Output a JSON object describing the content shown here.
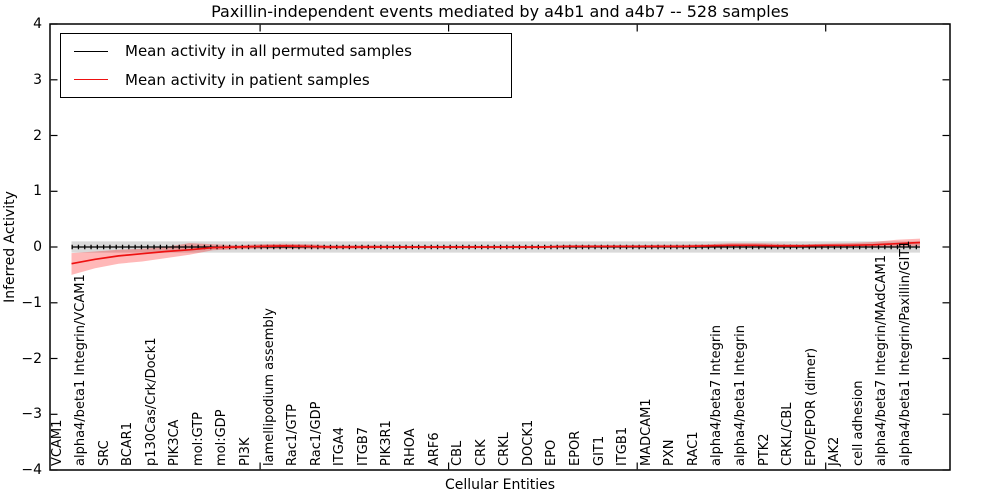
{
  "chart_data": {
    "type": "line",
    "title": "Paxillin-independent events mediated by a4b1 and a4b7 -- 528 samples",
    "xlabel": "Cellular Entities",
    "ylabel": "Inferred Activity",
    "ylim": [
      -4,
      4
    ],
    "yticks": [
      4,
      3,
      2,
      1,
      0,
      -1,
      -2,
      -3,
      -4
    ],
    "ytick_labels": [
      "4",
      "3",
      "2",
      "1",
      "0",
      "−1",
      "−2",
      "−3",
      "−4"
    ],
    "grid": false,
    "legend_position": "upper left",
    "categories": [
      "VCAM1",
      "alpha4/beta1 Integrin/VCAM1",
      "SRC",
      "BCAR1",
      "p130Cas/Crk/Dock1",
      "PIK3CA",
      "mol:GTP",
      "mol:GDP",
      "PI3K",
      "lamellipodium assembly",
      "Rac1/GTP",
      "Rac1/GDP",
      "ITGA4",
      "ITGB7",
      "PIK3R1",
      "RHOA",
      "ARF6",
      "CBL",
      "CRK",
      "CRKL",
      "DOCK1",
      "EPO",
      "EPOR",
      "GIT1",
      "ITGB1",
      "MADCAM1",
      "PXN",
      "RAC1",
      "alpha4/beta7 Integrin",
      "alpha4/beta1 Integrin",
      "PTK2",
      "CRKL/CBL",
      "EPO/EPOR (dimer)",
      "JAK2",
      "cell adhesion",
      "alpha4/beta7 Integrin/MAdCAM1",
      "alpha4/beta1 Integrin/Paxillin/GIT1"
    ],
    "series": [
      {
        "name": "Mean activity in all permuted samples",
        "color": "#000000",
        "band_color": "rgba(80,80,80,0.22)",
        "values": 0,
        "band_lo": -0.1,
        "band_hi": 0.1,
        "zero_markers": true
      },
      {
        "name": "Mean activity in patient samples",
        "color": "#ee1111",
        "band_color": "rgba(255,0,0,0.28)",
        "values": [
          -0.3,
          -0.22,
          -0.16,
          -0.12,
          -0.08,
          -0.05,
          -0.01,
          0.0,
          0.01,
          0.02,
          0.01,
          0.0,
          0.0,
          0.0,
          0.0,
          0.0,
          0.0,
          0.0,
          0.0,
          0.0,
          0.0,
          0.01,
          0.01,
          0.01,
          0.01,
          0.01,
          0.01,
          0.02,
          0.03,
          0.03,
          0.02,
          0.02,
          0.03,
          0.03,
          0.04,
          0.06,
          0.08
        ],
        "band_lo": [
          -0.5,
          -0.38,
          -0.3,
          -0.26,
          -0.2,
          -0.14,
          -0.06,
          -0.04,
          -0.03,
          -0.03,
          -0.03,
          -0.03,
          -0.03,
          -0.02,
          -0.02,
          -0.02,
          -0.02,
          -0.02,
          -0.02,
          -0.02,
          -0.02,
          -0.01,
          -0.01,
          -0.01,
          -0.01,
          -0.01,
          -0.01,
          0.0,
          0.0,
          0.0,
          0.0,
          0.0,
          0.0,
          0.0,
          0.0,
          0.01,
          0.02
        ],
        "band_hi": [
          -0.11,
          -0.08,
          -0.05,
          -0.03,
          0.0,
          0.07,
          0.05,
          0.03,
          0.05,
          0.06,
          0.05,
          0.03,
          0.03,
          0.03,
          0.02,
          0.02,
          0.02,
          0.02,
          0.02,
          0.02,
          0.02,
          0.03,
          0.03,
          0.03,
          0.03,
          0.04,
          0.04,
          0.05,
          0.07,
          0.07,
          0.06,
          0.05,
          0.06,
          0.07,
          0.09,
          0.13,
          0.15
        ]
      }
    ]
  },
  "legend": {
    "items": [
      {
        "label": "Mean activity in all permuted samples",
        "color": "#000000"
      },
      {
        "label": "Mean activity in patient samples",
        "color": "#ee1111"
      }
    ]
  }
}
